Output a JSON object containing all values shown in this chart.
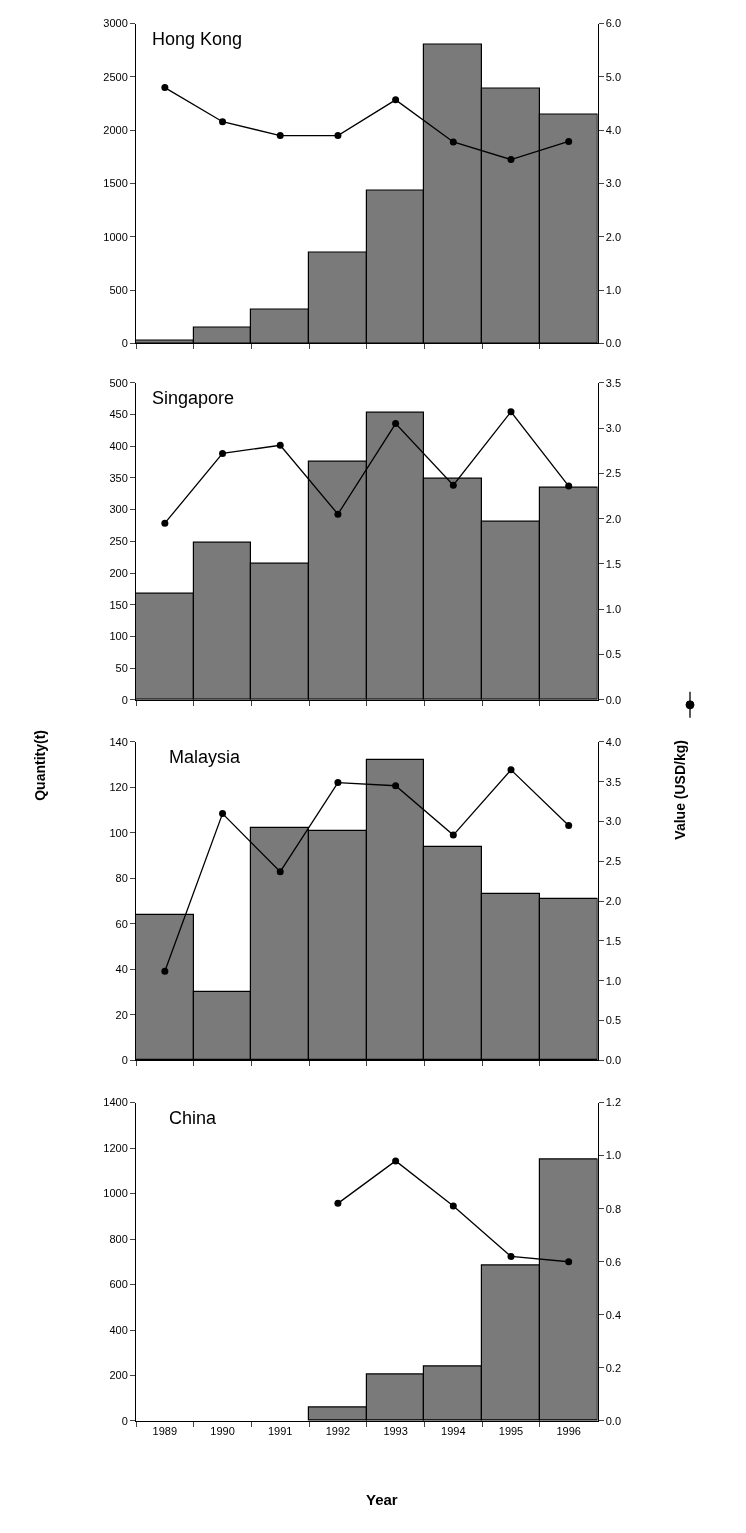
{
  "chart_data": [
    {
      "type": "bar",
      "title": "Hong Kong",
      "categories": [
        "1989",
        "1990",
        "1991",
        "1992",
        "1993",
        "1994",
        "1995",
        "1996"
      ],
      "series": [
        {
          "color": "#7a7a7a",
          "values": [
            30,
            150,
            320,
            850,
            1430,
            2800,
            2390,
            2150
          ]
        },
        {
          "type": "line",
          "axis": "y2",
          "color": "#000000",
          "values": [
            4.8,
            4.16,
            3.9,
            3.9,
            4.57,
            3.78,
            3.45,
            3.79
          ]
        }
      ],
      "ylim": [
        0,
        3000
      ],
      "yticks": [
        0,
        500,
        1000,
        1500,
        2000,
        2500,
        3000
      ],
      "y2lim": [
        0,
        6
      ],
      "y2ticks": [
        {
          "value": 0,
          "label": "0.0"
        },
        {
          "value": 1,
          "label": "1.0"
        },
        {
          "value": 2,
          "label": "2.0"
        },
        {
          "value": 3,
          "label": "3.0"
        },
        {
          "value": 4,
          "label": "4.0"
        },
        {
          "value": 5,
          "label": "5.0"
        },
        {
          "value": 6,
          "label": "6.0"
        }
      ],
      "tick_labels": "y",
      "marker": "circle",
      "line_style": "solid"
    },
    {
      "type": "bar",
      "title": "Singapore",
      "categories": [
        "1989",
        "1990",
        "1991",
        "1992",
        "1993",
        "1994",
        "1995",
        "1996"
      ],
      "series": [
        {
          "color": "#7a7a7a",
          "values": [
            167,
            247,
            214,
            375,
            453,
            348,
            281,
            335
          ]
        },
        {
          "type": "line",
          "axis": "y2",
          "color": "#000000",
          "values": [
            1.95,
            2.72,
            2.81,
            2.05,
            3.05,
            2.37,
            3.18,
            2.36
          ]
        }
      ],
      "ylim": [
        0,
        500
      ],
      "yticks": [
        0,
        50,
        100,
        150,
        200,
        250,
        300,
        350,
        400,
        450,
        500
      ],
      "y2lim": [
        0,
        3.5
      ],
      "y2ticks": [
        {
          "value": 0,
          "label": "0.0"
        },
        0.5,
        {
          "value": 1,
          "label": "1.0"
        },
        1.5,
        {
          "value": 2,
          "label": "2.0"
        },
        2.5,
        {
          "value": 3,
          "label": "3.0"
        },
        3.5
      ],
      "tick_labels": "y",
      "marker": "circle",
      "line_style": "solid"
    },
    {
      "type": "bar",
      "title": "Malaysia",
      "ylabel": "Quantity(t)",
      "y2label": "Value (USD/kg)",
      "categories": [
        "1989",
        "1990",
        "1991",
        "1992",
        "1993",
        "1994",
        "1995",
        "1996"
      ],
      "series": [
        {
          "color": "#7a7a7a",
          "values": [
            64,
            30,
            102,
            101,
            132,
            94,
            73,
            71
          ]
        },
        {
          "type": "line",
          "axis": "y2",
          "color": "#000000",
          "values": [
            1.12,
            3.1,
            2.37,
            3.49,
            3.45,
            2.83,
            3.65,
            2.95
          ]
        }
      ],
      "ylim": [
        0,
        140
      ],
      "yticks": [
        0,
        20,
        40,
        60,
        80,
        100,
        120,
        140
      ],
      "y2lim": [
        0,
        4
      ],
      "y2ticks": [
        {
          "value": 0,
          "label": "0.0"
        },
        0.5,
        {
          "value": 1,
          "label": "1.0"
        },
        1.5,
        {
          "value": 2,
          "label": "2.0"
        },
        2.5,
        {
          "value": 3,
          "label": "3.0"
        },
        3.5,
        {
          "value": 4,
          "label": "4.0"
        }
      ],
      "tick_labels": "y",
      "marker": "circle",
      "line_style": "solid"
    },
    {
      "type": "bar",
      "title": "China",
      "xlabel": "Year",
      "categories": [
        "1989",
        "1990",
        "1991",
        "1992",
        "1993",
        "1994",
        "1995",
        "1996"
      ],
      "series": [
        {
          "color": "#7a7a7a",
          "values": [
            null,
            null,
            null,
            60,
            205,
            240,
            684,
            1150
          ]
        },
        {
          "type": "line",
          "axis": "y2",
          "color": "#000000",
          "values": [
            null,
            null,
            null,
            0.82,
            0.98,
            0.81,
            0.62,
            0.6
          ]
        }
      ],
      "ylim": [
        0,
        1400
      ],
      "yticks": [
        0,
        200,
        400,
        600,
        800,
        1000,
        1200,
        1400
      ],
      "y2lim": [
        0,
        1.2
      ],
      "y2ticks": [
        {
          "value": 0,
          "label": "0.0"
        },
        0.2,
        0.4,
        0.6,
        0.8,
        {
          "value": 1,
          "label": "1.0"
        },
        1.2
      ],
      "marker": "circle",
      "line_style": "solid"
    }
  ]
}
